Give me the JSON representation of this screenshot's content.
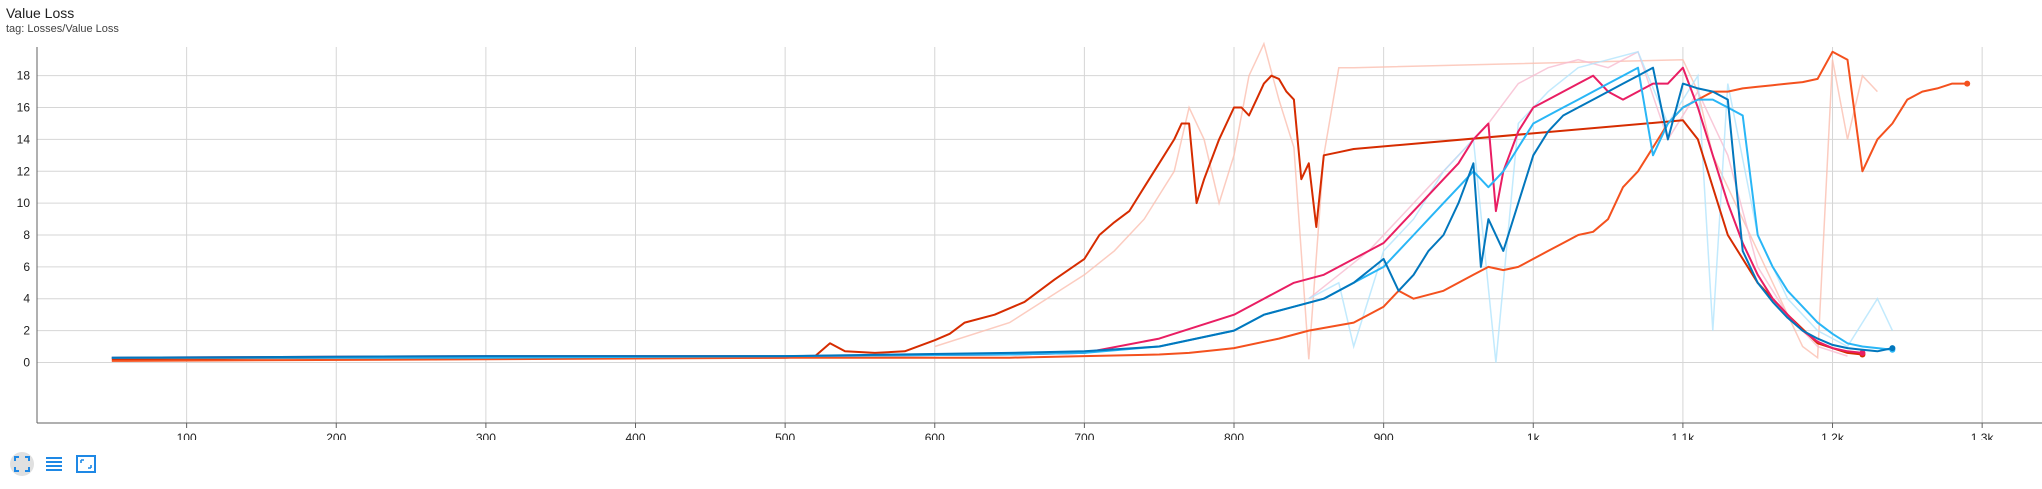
{
  "card": {
    "title": "Value Loss",
    "tag": "tag: Losses/Value Loss"
  },
  "toolbar": {
    "buttons": [
      {
        "name": "fit-domain-button",
        "icon": "fit-to-data-icon",
        "active": true
      },
      {
        "name": "toggle-log-button",
        "icon": "list-lines-icon",
        "active": false
      },
      {
        "name": "expand-chart-button",
        "icon": "expand-icon",
        "active": false
      }
    ]
  },
  "chart_data": {
    "type": "line",
    "title": "Value Loss",
    "xlim": [
      0,
      1340
    ],
    "ylim": [
      -3.8,
      19.8
    ],
    "x_ticks": [
      100,
      200,
      300,
      400,
      500,
      600,
      700,
      800,
      900,
      1000,
      1100,
      1200,
      1300
    ],
    "x_tick_labels": [
      "100",
      "200",
      "300",
      "400",
      "500",
      "600",
      "700",
      "800",
      "900",
      "1k",
      "1.1k",
      "1.2k",
      "1.3k"
    ],
    "y_ticks": [
      0,
      2,
      4,
      6,
      8,
      10,
      12,
      14,
      16,
      18
    ],
    "y_tick_labels": [
      "0",
      "2",
      "4",
      "6",
      "8",
      "10",
      "12",
      "14",
      "16",
      "18"
    ],
    "grid": true,
    "legend": "none",
    "series": [
      {
        "color": "#d62c00",
        "x": [
          50,
          200,
          300,
          400,
          500,
          520,
          530,
          540,
          560,
          580,
          600,
          610,
          620,
          640,
          660,
          680,
          700,
          710,
          720,
          730,
          740,
          750,
          760,
          765,
          770,
          775,
          780,
          790,
          800,
          805,
          810,
          815,
          820,
          825,
          830,
          835,
          840,
          845,
          850,
          855,
          860,
          870,
          880,
          1100,
          1110,
          1120,
          1130,
          1150,
          1170,
          1190,
          1210,
          1220
        ],
        "y": [
          0.2,
          0.3,
          0.3,
          0.3,
          0.3,
          0.4,
          1.2,
          0.7,
          0.6,
          0.7,
          1.4,
          1.8,
          2.5,
          3.0,
          3.8,
          5.2,
          6.5,
          8.0,
          8.8,
          9.5,
          11.0,
          12.5,
          14.0,
          15.0,
          15.0,
          10.0,
          11.5,
          14.0,
          16.0,
          16.0,
          15.5,
          16.5,
          17.5,
          18.0,
          17.8,
          17.0,
          16.5,
          11.5,
          12.5,
          8.5,
          13.0,
          13.2,
          13.4,
          15.2,
          14.0,
          11.0,
          8.0,
          5.0,
          3.0,
          1.2,
          0.6,
          0.5
        ]
      },
      {
        "color": "#f4511e",
        "x": [
          50,
          300,
          500,
          650,
          700,
          750,
          770,
          790,
          800,
          830,
          850,
          880,
          900,
          910,
          920,
          940,
          960,
          970,
          980,
          990,
          1000,
          1010,
          1020,
          1030,
          1040,
          1050,
          1060,
          1070,
          1080,
          1090,
          1100,
          1110,
          1120,
          1130,
          1140,
          1150,
          1160,
          1170,
          1180,
          1190,
          1200,
          1210,
          1220,
          1230,
          1240,
          1250,
          1260,
          1270,
          1280,
          1290
        ],
        "y": [
          0.1,
          0.2,
          0.3,
          0.3,
          0.4,
          0.5,
          0.6,
          0.8,
          0.9,
          1.5,
          2.0,
          2.5,
          3.5,
          4.5,
          4.0,
          4.5,
          5.5,
          6.0,
          5.8,
          6.0,
          6.5,
          7.0,
          7.5,
          8.0,
          8.2,
          9.0,
          11.0,
          12.0,
          13.5,
          15.0,
          16.0,
          16.5,
          17.0,
          17.0,
          17.2,
          17.3,
          17.4,
          17.5,
          17.6,
          17.8,
          19.5,
          19.0,
          12.0,
          14.0,
          15.0,
          16.5,
          17.0,
          17.2,
          17.5,
          17.5
        ]
      },
      {
        "color": "#e91e63",
        "x": [
          50,
          300,
          500,
          650,
          700,
          750,
          800,
          820,
          840,
          860,
          880,
          900,
          910,
          920,
          930,
          940,
          950,
          960,
          970,
          975,
          980,
          990,
          1000,
          1010,
          1020,
          1030,
          1040,
          1050,
          1060,
          1070,
          1080,
          1090,
          1100,
          1110,
          1120,
          1130,
          1140,
          1150,
          1160,
          1170,
          1180,
          1190,
          1200,
          1210,
          1220
        ],
        "y": [
          0.3,
          0.4,
          0.4,
          0.5,
          0.6,
          1.5,
          3.0,
          4.0,
          5.0,
          5.5,
          6.5,
          7.5,
          8.5,
          9.5,
          10.5,
          11.5,
          12.5,
          14.0,
          15.0,
          9.5,
          12.0,
          14.5,
          16.0,
          16.5,
          17.0,
          17.5,
          18.0,
          17.0,
          16.5,
          17.0,
          17.5,
          17.5,
          18.5,
          16.0,
          13.0,
          10.0,
          7.5,
          5.5,
          4.0,
          3.0,
          2.0,
          1.3,
          0.9,
          0.7,
          0.6
        ]
      },
      {
        "color": "#29b6f6",
        "x": [
          50,
          300,
          500,
          650,
          700,
          750,
          800,
          820,
          840,
          860,
          880,
          900,
          910,
          920,
          930,
          940,
          950,
          960,
          970,
          980,
          990,
          1000,
          1010,
          1020,
          1030,
          1040,
          1050,
          1060,
          1070,
          1080,
          1090,
          1100,
          1110,
          1120,
          1130,
          1140,
          1150,
          1160,
          1170,
          1180,
          1190,
          1200,
          1210,
          1220,
          1230,
          1240
        ],
        "y": [
          0.3,
          0.3,
          0.4,
          0.5,
          0.6,
          1.0,
          2.0,
          3.0,
          3.5,
          4.0,
          5.0,
          6.0,
          7.0,
          8.0,
          9.0,
          10.0,
          11.0,
          12.0,
          11.0,
          12.0,
          13.5,
          15.0,
          15.5,
          16.0,
          16.5,
          17.0,
          17.5,
          18.0,
          18.5,
          13.0,
          15.0,
          16.0,
          16.5,
          16.5,
          16.0,
          15.5,
          8.0,
          6.0,
          4.5,
          3.5,
          2.5,
          1.8,
          1.2,
          1.0,
          0.9,
          0.8
        ]
      },
      {
        "color": "#0277bd",
        "x": [
          50,
          300,
          500,
          650,
          700,
          750,
          800,
          820,
          840,
          860,
          880,
          900,
          910,
          920,
          930,
          940,
          950,
          960,
          965,
          970,
          980,
          990,
          1000,
          1010,
          1020,
          1030,
          1040,
          1050,
          1060,
          1070,
          1080,
          1090,
          1100,
          1110,
          1120,
          1130,
          1140,
          1150,
          1160,
          1170,
          1180,
          1190,
          1200,
          1210,
          1220,
          1230,
          1240
        ],
        "y": [
          0.3,
          0.4,
          0.4,
          0.6,
          0.7,
          1.0,
          2.0,
          3.0,
          3.5,
          4.0,
          5.0,
          6.5,
          4.5,
          5.5,
          7.0,
          8.0,
          10.0,
          12.5,
          6.0,
          9.0,
          7.0,
          10.0,
          13.0,
          14.5,
          15.5,
          16.0,
          16.5,
          17.0,
          17.5,
          18.0,
          18.5,
          14.0,
          17.5,
          17.2,
          17.0,
          16.5,
          7.0,
          5.0,
          3.8,
          2.8,
          2.0,
          1.5,
          1.1,
          0.9,
          0.8,
          0.7,
          0.9
        ]
      }
    ],
    "raw_series": [
      {
        "color": "#fbbfb0",
        "x": [
          600,
          650,
          700,
          720,
          740,
          760,
          770,
          780,
          790,
          800,
          810,
          820,
          830,
          840,
          850,
          860,
          870,
          880,
          1100,
          1110,
          1120,
          1130,
          1140,
          1150,
          1160,
          1170,
          1180,
          1190,
          1200,
          1210,
          1220,
          1230
        ],
        "y": [
          1.0,
          2.5,
          5.5,
          7.0,
          9.0,
          12.0,
          16.0,
          14.0,
          10.0,
          13.0,
          18.0,
          20.0,
          16.5,
          13.5,
          0.2,
          13.0,
          18.5,
          18.5,
          19.0,
          17.0,
          13.0,
          11.0,
          9.0,
          7.0,
          5.0,
          3.0,
          1.0,
          0.3,
          19.0,
          14.0,
          18.0,
          17.0
        ]
      },
      {
        "color": "#f8bbd0",
        "x": [
          850,
          870,
          890,
          910,
          930,
          950,
          970,
          990,
          1010,
          1030,
          1050,
          1070,
          1090,
          1110,
          1130,
          1150,
          1170,
          1190,
          1210
        ],
        "y": [
          4.0,
          5.5,
          7.0,
          9.0,
          11.0,
          13.0,
          15.0,
          17.5,
          18.5,
          19.0,
          18.5,
          19.5,
          14.0,
          17.0,
          13.0,
          6.0,
          3.0,
          1.0,
          0.4
        ]
      },
      {
        "color": "#b3e5fc",
        "x": [
          850,
          870,
          880,
          900,
          920,
          940,
          960,
          975,
          990,
          1010,
          1030,
          1050,
          1070,
          1090,
          1110,
          1120,
          1130,
          1150,
          1170,
          1190,
          1210,
          1230,
          1240
        ],
        "y": [
          4.0,
          5.0,
          1.0,
          7.0,
          9.0,
          12.0,
          14.0,
          0.0,
          15.0,
          17.0,
          18.5,
          19.0,
          19.5,
          15.0,
          18.0,
          2.0,
          17.5,
          8.0,
          4.0,
          2.0,
          1.0,
          4.0,
          2.0
        ]
      }
    ]
  }
}
